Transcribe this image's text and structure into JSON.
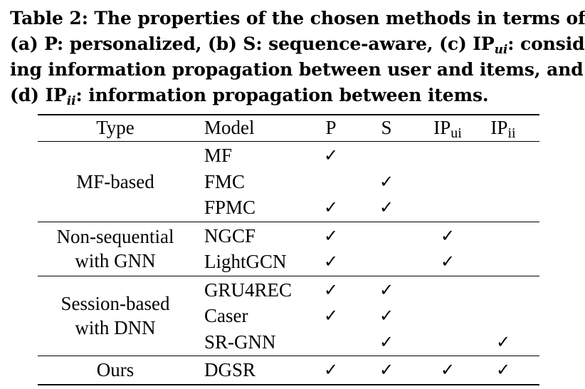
{
  "caption": {
    "line1": "Table 2: The properties of the chosen methods in terms of",
    "line2_pre": "(a) P: personalized, (b) S: sequence-aware, (c) IP",
    "line2_sub": "ui",
    "line2_post": ": consider-",
    "line3": "ing information propagation between user and items, and",
    "line4_pre": "(d) IP",
    "line4_sub": "ii",
    "line4_post": ": information propagation between items."
  },
  "table": {
    "headers": {
      "type": "Type",
      "model": "Model",
      "p": "P",
      "s": "S",
      "ipui_base": "IP",
      "ipui_sub": "ui",
      "ipii_base": "IP",
      "ipii_sub": "ii"
    },
    "check_symbol": "✓",
    "groups": [
      {
        "type_lines": [
          "MF-based"
        ],
        "rows": [
          {
            "model": "MF",
            "p": true,
            "s": false,
            "ipui": false,
            "ipii": false
          },
          {
            "model": "FMC",
            "p": false,
            "s": true,
            "ipui": false,
            "ipii": false
          },
          {
            "model": "FPMC",
            "p": true,
            "s": true,
            "ipui": false,
            "ipii": false
          }
        ]
      },
      {
        "type_lines": [
          "Non-sequential",
          "with GNN"
        ],
        "rows": [
          {
            "model": "NGCF",
            "p": true,
            "s": false,
            "ipui": true,
            "ipii": false
          },
          {
            "model": "LightGCN",
            "p": true,
            "s": false,
            "ipui": true,
            "ipii": false
          }
        ]
      },
      {
        "type_lines": [
          "Session-based",
          "with DNN"
        ],
        "rows": [
          {
            "model": "GRU4REC",
            "p": true,
            "s": true,
            "ipui": false,
            "ipii": false
          },
          {
            "model": "Caser",
            "p": true,
            "s": true,
            "ipui": false,
            "ipii": false
          },
          {
            "model": "SR-GNN",
            "p": false,
            "s": true,
            "ipui": false,
            "ipii": true
          }
        ]
      },
      {
        "type_lines": [
          "Ours"
        ],
        "rows": [
          {
            "model": "DGSR",
            "p": true,
            "s": true,
            "ipui": true,
            "ipii": true
          }
        ]
      }
    ]
  }
}
